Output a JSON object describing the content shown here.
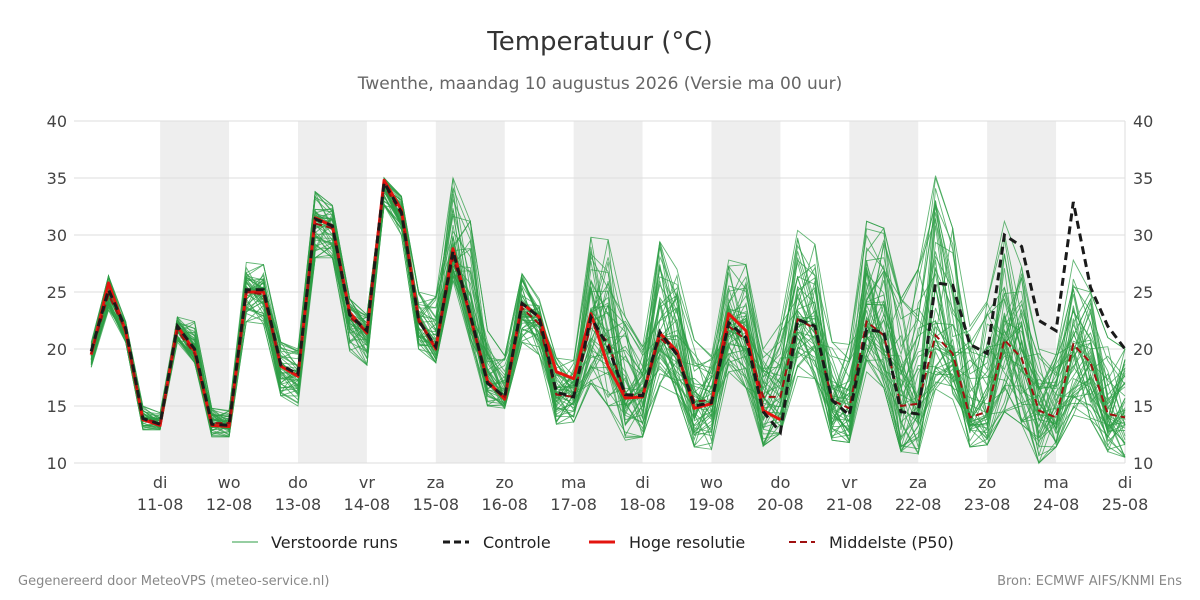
{
  "chart_data": {
    "type": "line",
    "title": "Temperatuur (°C)",
    "subtitle": "Twenthe, maandag 10 augustus 2026 (Versie ma 00 uur)",
    "ylim": [
      10,
      40
    ],
    "yticks": [
      10,
      15,
      20,
      25,
      30,
      35,
      40
    ],
    "xlim": [
      -1.25,
      14
    ],
    "x_ticks": [
      {
        "day": "di",
        "date": "11-08"
      },
      {
        "day": "wo",
        "date": "12-08"
      },
      {
        "day": "do",
        "date": "13-08"
      },
      {
        "day": "vr",
        "date": "14-08"
      },
      {
        "day": "za",
        "date": "15-08"
      },
      {
        "day": "zo",
        "date": "16-08"
      },
      {
        "day": "ma",
        "date": "17-08"
      },
      {
        "day": "di",
        "date": "18-08"
      },
      {
        "day": "wo",
        "date": "19-08"
      },
      {
        "day": "do",
        "date": "20-08"
      },
      {
        "day": "vr",
        "date": "21-08"
      },
      {
        "day": "za",
        "date": "22-08"
      },
      {
        "day": "zo",
        "date": "23-08"
      },
      {
        "day": "ma",
        "date": "24-08"
      },
      {
        "day": "di",
        "date": "25-08"
      }
    ],
    "shaded_day_indices": [
      0,
      2,
      4,
      6,
      8,
      10,
      12
    ],
    "grid": true,
    "legend_position": "bottom",
    "colors": {
      "ensemble": "#2e9e45",
      "control": "#1a1a1a",
      "high_res": "#e3140f",
      "median": "#a01010",
      "weekend_band": "#eeeeee",
      "grid": "#dddddd"
    },
    "series": [
      {
        "name": "Controle",
        "style": "dashed",
        "x": [
          -1,
          -0.75,
          -0.5,
          -0.25,
          0,
          0.25,
          0.5,
          0.75,
          1,
          1.25,
          1.5,
          1.75,
          2,
          2.25,
          2.5,
          2.75,
          3,
          3.25,
          3.5,
          3.75,
          4,
          4.25,
          4.5,
          4.75,
          5,
          5.25,
          5.5,
          5.75,
          6,
          6.25,
          6.5,
          6.75,
          7,
          7.25,
          7.5,
          7.75,
          8,
          8.25,
          8.5,
          8.75,
          9,
          9.25,
          9.5,
          9.75,
          10,
          10.25,
          10.5,
          10.75,
          11,
          11.25,
          11.5,
          11.75,
          12,
          12.25,
          12.5,
          12.75,
          13,
          13.25,
          13.5,
          13.75,
          14
        ],
        "values": [
          19.8,
          25.2,
          21.8,
          13.9,
          13.4,
          22.0,
          20.0,
          13.4,
          13.3,
          25.2,
          25.2,
          18.6,
          17.8,
          31.4,
          30.8,
          23.0,
          21.6,
          34.6,
          32.0,
          22.5,
          20.2,
          28.6,
          23.0,
          17.0,
          15.8,
          24.0,
          22.8,
          16.2,
          15.8,
          22.8,
          20.2,
          16.0,
          15.9,
          21.5,
          19.5,
          15.0,
          15.3,
          22.3,
          21.0,
          14.5,
          12.7,
          22.6,
          22.0,
          15.5,
          14.2,
          21.7,
          21.5,
          14.5,
          14.3,
          25.8,
          25.6,
          20.4,
          19.6,
          30.0,
          29.0,
          22.5,
          21.6,
          32.9,
          25.4,
          22.0,
          20.0
        ]
      },
      {
        "name": "Hoge resolutie",
        "style": "solid",
        "x": [
          -1,
          -0.75,
          -0.5,
          -0.25,
          0,
          0.25,
          0.5,
          0.75,
          1,
          1.25,
          1.5,
          1.75,
          2,
          2.25,
          2.5,
          2.75,
          3,
          3.25,
          3.5,
          3.75,
          4,
          4.25,
          4.5,
          4.75,
          5,
          5.25,
          5.5,
          5.75,
          6,
          6.25,
          6.5,
          6.75,
          7,
          7.25,
          7.5,
          7.75,
          8,
          8.25,
          8.5,
          8.75,
          9
        ],
        "values": [
          19.5,
          25.8,
          21.5,
          13.8,
          13.3,
          22.0,
          19.8,
          13.3,
          13.2,
          25.0,
          25.0,
          18.5,
          17.6,
          31.5,
          30.8,
          23.2,
          21.4,
          34.8,
          32.2,
          22.6,
          20.0,
          28.8,
          22.8,
          17.2,
          15.6,
          24.0,
          22.8,
          18.0,
          17.4,
          23.1,
          18.5,
          15.7,
          15.8,
          21.4,
          19.8,
          14.8,
          15.2,
          23.1,
          21.6,
          14.6,
          13.8
        ]
      },
      {
        "name": "Middelste (P50)",
        "style": "dashed",
        "x": [
          -1,
          -0.75,
          -0.5,
          -0.25,
          0,
          0.25,
          0.5,
          0.75,
          1,
          1.25,
          1.5,
          1.75,
          2,
          2.25,
          2.5,
          2.75,
          3,
          3.25,
          3.5,
          3.75,
          4,
          4.25,
          4.5,
          4.75,
          5,
          5.25,
          5.5,
          5.75,
          6,
          6.25,
          6.5,
          6.75,
          7,
          7.25,
          7.5,
          7.75,
          8,
          8.25,
          8.5,
          8.75,
          9,
          9.25,
          9.5,
          9.75,
          10,
          10.25,
          10.5,
          10.75,
          11,
          11.25,
          11.5,
          11.75,
          12,
          12.25,
          12.5,
          12.75,
          13,
          13.25,
          13.5,
          13.75,
          14
        ],
        "values": [
          19.6,
          24.8,
          21.6,
          13.9,
          13.5,
          21.6,
          19.6,
          13.5,
          13.5,
          25.0,
          24.8,
          18.6,
          17.8,
          31.0,
          30.6,
          22.8,
          21.5,
          34.4,
          31.8,
          22.4,
          20.2,
          28.0,
          23.0,
          17.0,
          15.8,
          23.6,
          22.2,
          16.0,
          15.8,
          22.2,
          20.6,
          16.0,
          16.0,
          21.0,
          19.6,
          15.4,
          15.5,
          22.0,
          20.8,
          15.8,
          15.8,
          22.6,
          21.8,
          15.5,
          14.8,
          22.4,
          21.2,
          15.0,
          15.2,
          21.2,
          19.6,
          14.0,
          14.5,
          20.8,
          19.2,
          14.6,
          14.0,
          20.4,
          18.8,
          14.3,
          14.0
        ]
      },
      {
        "name": "Verstoorde runs",
        "style": "thin",
        "note": "ensemble members; envelope (min/max per 6h step) listed",
        "x": [
          -1,
          -0.75,
          -0.5,
          -0.25,
          0,
          0.25,
          0.5,
          0.75,
          1,
          1.25,
          1.5,
          1.75,
          2,
          2.25,
          2.5,
          2.75,
          3,
          3.25,
          3.5,
          3.75,
          4,
          4.25,
          4.5,
          4.75,
          5,
          5.25,
          5.5,
          5.75,
          6,
          6.25,
          6.5,
          6.75,
          7,
          7.25,
          7.5,
          7.75,
          8,
          8.25,
          8.5,
          8.75,
          9,
          9.25,
          9.5,
          9.75,
          10,
          10.25,
          10.5,
          10.75,
          11,
          11.25,
          11.5,
          11.75,
          12,
          12.25,
          12.5,
          12.75,
          13,
          13.25,
          13.5,
          13.75,
          14
        ],
        "min": [
          18.4,
          23.4,
          20.6,
          12.9,
          12.9,
          20.6,
          18.8,
          12.3,
          12.3,
          22.4,
          22.2,
          15.9,
          15.0,
          28.0,
          28.0,
          19.8,
          18.6,
          32.6,
          30.0,
          20.0,
          18.8,
          26.0,
          20.6,
          15.0,
          14.8,
          20.6,
          19.5,
          13.4,
          13.6,
          17.0,
          15.0,
          12.0,
          12.3,
          16.8,
          16.0,
          11.4,
          11.2,
          18.0,
          16.6,
          11.5,
          12.6,
          17.6,
          17.4,
          12.0,
          11.8,
          18.0,
          16.6,
          11.0,
          10.8,
          16.5,
          15.6,
          11.4,
          11.6,
          14.5,
          13.4,
          10.0,
          11.4,
          14.2,
          13.8,
          11.0,
          10.5
        ],
        "max": [
          20.6,
          26.4,
          22.4,
          15.0,
          14.4,
          22.8,
          22.4,
          14.8,
          14.6,
          27.6,
          27.4,
          20.6,
          20.0,
          33.8,
          32.6,
          24.4,
          23.0,
          35.0,
          33.4,
          25.0,
          24.6,
          35.0,
          31.2,
          21.6,
          19.4,
          26.6,
          24.4,
          19.2,
          19.0,
          29.8,
          29.6,
          22.8,
          20.2,
          29.4,
          27.0,
          20.8,
          19.4,
          27.8,
          27.4,
          20.0,
          22.2,
          30.4,
          29.2,
          20.6,
          20.4,
          31.2,
          30.6,
          24.4,
          27.0,
          35.2,
          30.6,
          22.0,
          24.2,
          31.2,
          27.2,
          20.0,
          19.5,
          27.8,
          25.0,
          21.0,
          20.0
        ]
      }
    ]
  },
  "legend": {
    "items": [
      {
        "label": "Verstoorde runs"
      },
      {
        "label": "Controle"
      },
      {
        "label": "Hoge resolutie"
      },
      {
        "label": "Middelste (P50)"
      }
    ]
  },
  "footer": {
    "left": "Gegenereerd door MeteoVPS (meteo-service.nl)",
    "right": "Bron: ECMWF AIFS/KNMI Ens"
  }
}
